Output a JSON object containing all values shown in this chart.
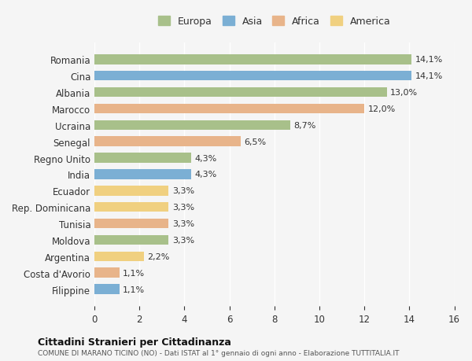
{
  "countries": [
    "Romania",
    "Cina",
    "Albania",
    "Marocco",
    "Ucraina",
    "Senegal",
    "Regno Unito",
    "India",
    "Ecuador",
    "Rep. Dominicana",
    "Tunisia",
    "Moldova",
    "Argentina",
    "Costa d'Avorio",
    "Filippine"
  ],
  "values": [
    14.1,
    14.1,
    13.0,
    12.0,
    8.7,
    6.5,
    4.3,
    4.3,
    3.3,
    3.3,
    3.3,
    3.3,
    2.2,
    1.1,
    1.1
  ],
  "labels": [
    "14,1%",
    "14,1%",
    "13,0%",
    "12,0%",
    "8,7%",
    "6,5%",
    "4,3%",
    "4,3%",
    "3,3%",
    "3,3%",
    "3,3%",
    "3,3%",
    "2,2%",
    "1,1%",
    "1,1%"
  ],
  "continents": [
    "Europa",
    "Asia",
    "Europa",
    "Africa",
    "Europa",
    "Africa",
    "Europa",
    "Asia",
    "America",
    "America",
    "Africa",
    "Europa",
    "America",
    "Africa",
    "Asia"
  ],
  "continent_colors": {
    "Europa": "#a8c08a",
    "Asia": "#7bafd4",
    "Africa": "#e8b48a",
    "America": "#f0d080"
  },
  "legend_order": [
    "Europa",
    "Asia",
    "Africa",
    "America"
  ],
  "title1": "Cittadini Stranieri per Cittadinanza",
  "title2": "COMUNE DI MARANO TICINO (NO) - Dati ISTAT al 1° gennaio di ogni anno - Elaborazione TUTTITALIA.IT",
  "xlim": [
    0,
    16
  ],
  "xticks": [
    0,
    2,
    4,
    6,
    8,
    10,
    12,
    14,
    16
  ],
  "background_color": "#f5f5f5",
  "bar_height": 0.6
}
